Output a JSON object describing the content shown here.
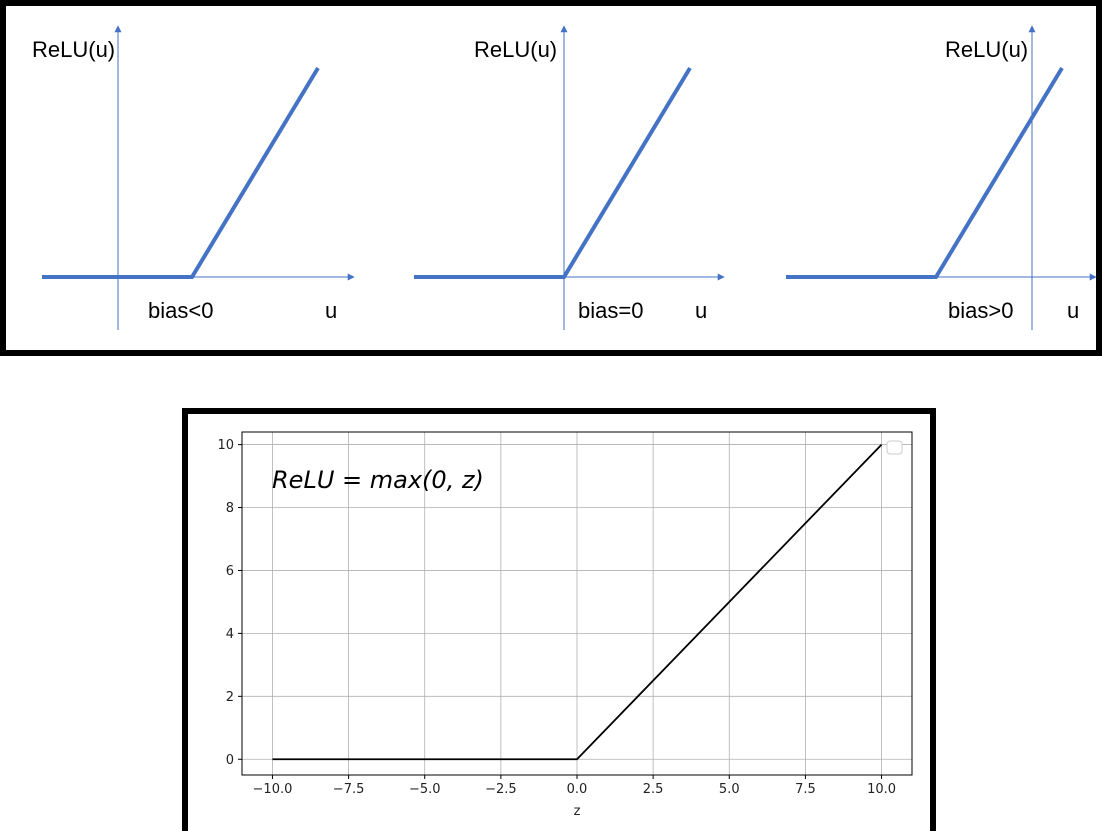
{
  "chart_data": [
    {
      "type": "line",
      "panels": [
        {
          "ylabel": "ReLU(u)",
          "xlabel": "u",
          "annotation": "bias<0"
        },
        {
          "ylabel": "ReLU(u)",
          "xlabel": "u",
          "annotation": "bias=0"
        },
        {
          "ylabel": "ReLU(u)",
          "xlabel": "u",
          "annotation": "bias>0"
        }
      ],
      "colors": {
        "relu_line": "#4472c4",
        "axis": "#4472c4"
      }
    },
    {
      "type": "line",
      "xlabel": "z",
      "annotation": "ReLU = max(0, z)",
      "xlim": [
        -11,
        11
      ],
      "ylim": [
        -0.5,
        10.4
      ],
      "xticks": [
        -10.0,
        -7.5,
        -5.0,
        -2.5,
        0.0,
        2.5,
        5.0,
        7.5,
        10.0
      ],
      "xtick_labels": [
        "−10.0",
        "−7.5",
        "−5.0",
        "−2.5",
        "0.0",
        "2.5",
        "5.0",
        "7.5",
        "10.0"
      ],
      "yticks": [
        0,
        2,
        4,
        6,
        8,
        10
      ],
      "ytick_labels": [
        "0",
        "2",
        "4",
        "6",
        "8",
        "10"
      ],
      "grid": true,
      "legend": "top-right",
      "series": [
        {
          "x": [
            -10,
            0,
            10
          ],
          "y": [
            0,
            0,
            10
          ],
          "color": "#000000"
        }
      ]
    }
  ]
}
